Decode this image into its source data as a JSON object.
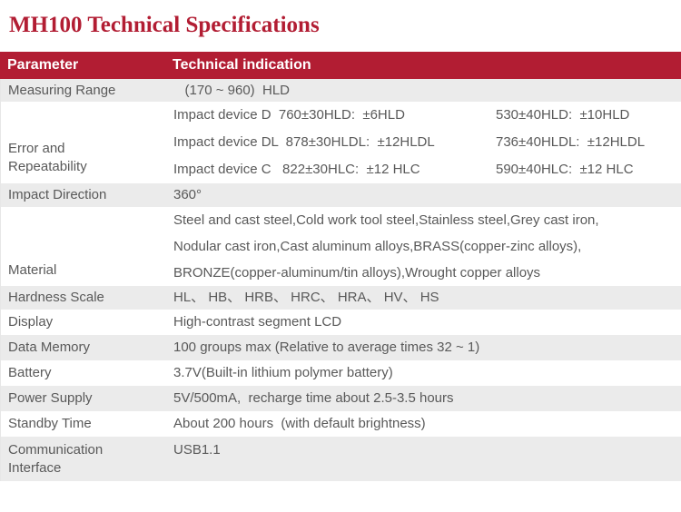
{
  "title": "MH100 Technical Specifications",
  "colors": {
    "accent_red": "#B21D33",
    "stripe_gray": "#EBEBEB",
    "body_text": "#595959",
    "header_text": "#FFFFFF"
  },
  "table": {
    "headers": {
      "parameter": "Parameter",
      "indication": "Technical indication"
    },
    "rows": [
      {
        "parameter": "Measuring Range",
        "value": "   (170 ~ 960)  HLD"
      },
      {
        "parameter": "Error and\nRepeatability",
        "lines": [
          {
            "left": "Impact device D  760±30HLD:  ±6HLD",
            "right": "530±40HLD:  ±10HLD"
          },
          {
            "left": "Impact device DL  878±30HLDL:  ±12HLDL",
            "right": "736±40HLDL:  ±12HLDL"
          },
          {
            "left": "Impact device C   822±30HLC:  ±12 HLC",
            "right": "590±40HLC:  ±12 HLC"
          }
        ]
      },
      {
        "parameter": "Impact Direction",
        "value": "360°"
      },
      {
        "parameter": "Material",
        "lines": [
          "Steel and cast steel,Cold work tool steel,Stainless steel,Grey cast iron,",
          "Nodular cast iron,Cast aluminum alloys,BRASS(copper-zinc alloys),",
          "BRONZE(copper-aluminum/tin alloys),Wrought copper alloys"
        ]
      },
      {
        "parameter": "Hardness Scale",
        "value": "HL、 HB、 HRB、 HRC、 HRA、 HV、 HS"
      },
      {
        "parameter": "Display",
        "value": "High-contrast segment LCD"
      },
      {
        "parameter": "Data Memory",
        "value": "100 groups max (Relative to average times 32 ~ 1)"
      },
      {
        "parameter": "Battery",
        "value": "3.7V(Built-in lithium polymer battery)"
      },
      {
        "parameter": "Power Supply",
        "value": "5V/500mA,  recharge time about 2.5-3.5 hours"
      },
      {
        "parameter": "Standby Time",
        "value": "About 200 hours  (with default brightness)"
      },
      {
        "parameter": "Communication\nInterface",
        "value": "USB1.1"
      }
    ]
  }
}
